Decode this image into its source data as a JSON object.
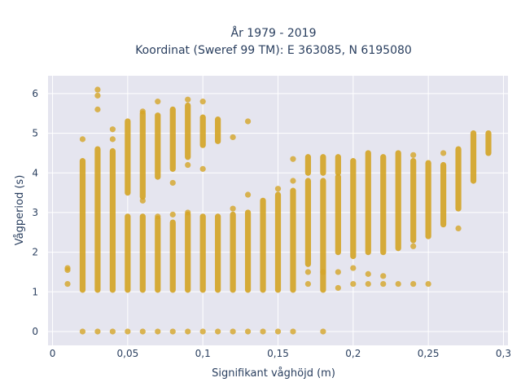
{
  "chart_data": {
    "type": "scatter",
    "title_line1": "År 1979 - 2019",
    "title_line2": "Koordinat (Sweref 99 TM): E 363085, N 6195080",
    "xlabel": "Signifikant våghöjd (m)",
    "ylabel": "Vågperiod (s)",
    "xlim": [
      -0.003,
      0.303
    ],
    "ylim": [
      -0.35,
      6.45
    ],
    "x_ticks": [
      0,
      0.05,
      0.1,
      0.15,
      0.2,
      0.25,
      0.3
    ],
    "x_tick_labels": [
      "0",
      "0,05",
      "0,1",
      "0,15",
      "0,2",
      "0,25",
      "0,3"
    ],
    "y_ticks": [
      0,
      1,
      2,
      3,
      4,
      5,
      6
    ],
    "y_tick_labels": [
      "0",
      "1",
      "2",
      "3",
      "4",
      "5",
      "6"
    ],
    "grid": true,
    "marker_color": "#d4a528",
    "plot_background": "#e5e5ef",
    "grid_color": "#ffffff",
    "text_color": "#2a3f5f",
    "columns": [
      {
        "x": 0.01,
        "ranges": [],
        "points": [
          1.2,
          1.55,
          1.6
        ]
      },
      {
        "x": 0.02,
        "ranges": [
          [
            1.05,
            4.3
          ]
        ],
        "points": [
          0,
          4.85
        ]
      },
      {
        "x": 0.03,
        "ranges": [
          [
            1.05,
            4.6
          ]
        ],
        "points": [
          0,
          5.6,
          5.95,
          6.1
        ]
      },
      {
        "x": 0.04,
        "ranges": [
          [
            1.05,
            4.55
          ]
        ],
        "points": [
          0,
          4.85,
          5.1
        ]
      },
      {
        "x": 0.05,
        "ranges": [
          [
            1.05,
            2.9
          ],
          [
            3.5,
            5.3
          ]
        ],
        "points": [
          0
        ]
      },
      {
        "x": 0.06,
        "ranges": [
          [
            1.05,
            2.9
          ],
          [
            3.4,
            5.5
          ]
        ],
        "points": [
          0,
          3.3,
          5.55
        ]
      },
      {
        "x": 0.07,
        "ranges": [
          [
            1.05,
            2.85
          ],
          [
            3.9,
            5.45
          ]
        ],
        "points": [
          0,
          2.9,
          5.8
        ]
      },
      {
        "x": 0.08,
        "ranges": [
          [
            1.05,
            2.75
          ],
          [
            4.1,
            5.6
          ]
        ],
        "points": [
          0,
          2.95,
          3.75
        ]
      },
      {
        "x": 0.09,
        "ranges": [
          [
            1.05,
            2.95
          ],
          [
            4.4,
            5.7
          ]
        ],
        "points": [
          0,
          3.0,
          4.2,
          5.85
        ]
      },
      {
        "x": 0.1,
        "ranges": [
          [
            1.05,
            2.9
          ],
          [
            4.7,
            5.4
          ]
        ],
        "points": [
          0,
          4.1,
          5.8
        ]
      },
      {
        "x": 0.11,
        "ranges": [
          [
            1.05,
            2.9
          ],
          [
            4.8,
            5.35
          ]
        ],
        "points": [
          0
        ]
      },
      {
        "x": 0.12,
        "ranges": [
          [
            1.05,
            2.95
          ]
        ],
        "points": [
          0,
          3.1,
          4.9
        ]
      },
      {
        "x": 0.13,
        "ranges": [
          [
            1.05,
            3.0
          ]
        ],
        "points": [
          0,
          3.45,
          5.3
        ]
      },
      {
        "x": 0.14,
        "ranges": [
          [
            1.05,
            3.3
          ]
        ],
        "points": [
          0
        ]
      },
      {
        "x": 0.15,
        "ranges": [
          [
            1.05,
            3.45
          ]
        ],
        "points": [
          0,
          3.6
        ]
      },
      {
        "x": 0.16,
        "ranges": [
          [
            1.05,
            3.55
          ]
        ],
        "points": [
          0,
          3.8,
          4.35
        ]
      },
      {
        "x": 0.17,
        "ranges": [
          [
            1.7,
            3.8
          ],
          [
            4.0,
            4.4
          ]
        ],
        "points": [
          1.2,
          1.5
        ]
      },
      {
        "x": 0.18,
        "ranges": [
          [
            1.05,
            3.8
          ],
          [
            4.0,
            4.4
          ]
        ],
        "points": [
          0,
          1.5
        ]
      },
      {
        "x": 0.19,
        "ranges": [
          [
            2.0,
            3.9
          ],
          [
            4.0,
            4.4
          ]
        ],
        "points": [
          1.1,
          1.5
        ]
      },
      {
        "x": 0.2,
        "ranges": [
          [
            1.9,
            4.3
          ]
        ],
        "points": [
          1.2,
          1.6
        ]
      },
      {
        "x": 0.21,
        "ranges": [
          [
            2.0,
            4.5
          ]
        ],
        "points": [
          1.2,
          1.45
        ]
      },
      {
        "x": 0.22,
        "ranges": [
          [
            2.0,
            4.4
          ]
        ],
        "points": [
          1.2,
          1.4
        ]
      },
      {
        "x": 0.23,
        "ranges": [
          [
            2.1,
            4.5
          ]
        ],
        "points": [
          1.2
        ]
      },
      {
        "x": 0.24,
        "ranges": [
          [
            2.3,
            4.3
          ]
        ],
        "points": [
          1.2,
          2.15,
          4.45
        ]
      },
      {
        "x": 0.25,
        "ranges": [
          [
            2.4,
            4.25
          ]
        ],
        "points": [
          1.2
        ]
      },
      {
        "x": 0.26,
        "ranges": [
          [
            2.7,
            4.2
          ]
        ],
        "points": [
          4.5
        ]
      },
      {
        "x": 0.27,
        "ranges": [
          [
            3.1,
            4.6
          ]
        ],
        "points": [
          2.6
        ]
      },
      {
        "x": 0.28,
        "ranges": [
          [
            3.8,
            5.0
          ]
        ],
        "points": []
      },
      {
        "x": 0.29,
        "ranges": [
          [
            4.5,
            5.0
          ]
        ],
        "points": []
      }
    ]
  }
}
